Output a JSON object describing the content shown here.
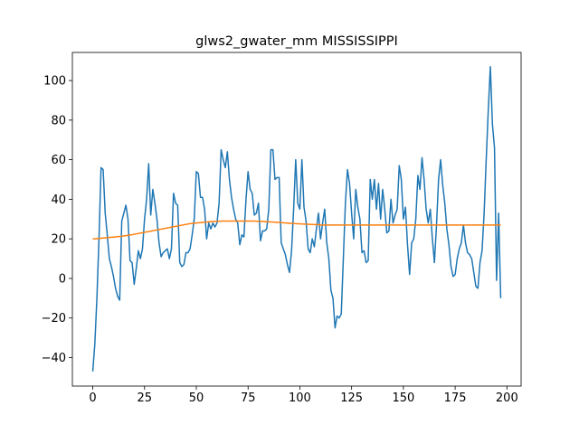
{
  "chart_data": {
    "type": "line",
    "title": "glws2_gwater_mm MISSISSIPPI",
    "xlim": [
      -9.85,
      206.85
    ],
    "xticks": [
      0,
      25,
      50,
      75,
      100,
      125,
      150,
      175,
      200
    ],
    "ylim": [
      -54.4,
      114.2
    ],
    "yticks": [
      {
        "value": -40,
        "label": "−40"
      },
      {
        "value": -20,
        "label": "−20"
      },
      0,
      20,
      40,
      60,
      80,
      100
    ],
    "series": [
      {
        "color": "#1f77b4",
        "values": [
          -47,
          -33,
          -10,
          20,
          56,
          55,
          33,
          22,
          10,
          6,
          1,
          -5,
          -9,
          -11,
          29,
          33,
          37,
          30,
          9,
          8,
          -3,
          5,
          14,
          10,
          15,
          30,
          40,
          58,
          32,
          45,
          38,
          30,
          18,
          11,
          13,
          14,
          15,
          10,
          15,
          43,
          38,
          37,
          8,
          6,
          7,
          13,
          13,
          15,
          22,
          30,
          54,
          53,
          41,
          41,
          35,
          20,
          28,
          25,
          28,
          26,
          28,
          38,
          65,
          60,
          56,
          64,
          50,
          41,
          35,
          30,
          28,
          17,
          22,
          21,
          40,
          54,
          45,
          43,
          32,
          33,
          38,
          19,
          24,
          24,
          25,
          35,
          65,
          65,
          50,
          51,
          51,
          18,
          15,
          12,
          7,
          3,
          14,
          35,
          60,
          38,
          35,
          60,
          36,
          29,
          15,
          13,
          20,
          16,
          25,
          33,
          20,
          28,
          35,
          18,
          10,
          -6,
          -10,
          -25,
          -19,
          -20,
          -18,
          10,
          38,
          55,
          48,
          33,
          20,
          45,
          36,
          30,
          13,
          14,
          8,
          9,
          50,
          40,
          50,
          35,
          48,
          30,
          45,
          35,
          23,
          24,
          40,
          28,
          32,
          35,
          57,
          50,
          30,
          36,
          17,
          2,
          18,
          20,
          30,
          52,
          45,
          61,
          50,
          35,
          28,
          35,
          20,
          8,
          27,
          50,
          60,
          47,
          38,
          25,
          17,
          6,
          1,
          2,
          10,
          15,
          18,
          27,
          18,
          13,
          12,
          10,
          3,
          -4,
          -5,
          8,
          14,
          33,
          60,
          85,
          107,
          78,
          66,
          -1,
          33,
          -10
        ]
      },
      {
        "color": "#ff7f0e",
        "values": [
          20,
          20,
          20.1,
          20.2,
          20.3,
          20.4,
          20.5,
          20.6,
          20.7,
          20.8,
          20.9,
          21,
          21.1,
          21.2,
          21.3,
          21.5,
          21.6,
          21.8,
          22,
          22.1,
          22.3,
          22.5,
          22.7,
          22.9,
          23.1,
          23.3,
          23.5,
          23.7,
          23.9,
          24.1,
          24.3,
          24.5,
          24.7,
          24.9,
          25.1,
          25.3,
          25.5,
          25.7,
          25.9,
          26.1,
          26.3,
          26.5,
          26.7,
          26.9,
          27.1,
          27.3,
          27.5,
          27.7,
          27.8,
          27.9,
          28,
          28.1,
          28.2,
          28.3,
          28.4,
          28.5,
          28.6,
          28.7,
          28.8,
          28.8,
          28.9,
          28.9,
          29,
          29,
          29,
          29,
          29,
          29,
          29,
          29,
          29,
          29,
          29,
          29,
          29,
          29,
          29,
          29,
          29,
          28.9,
          28.9,
          28.8,
          28.8,
          28.7,
          28.7,
          28.6,
          28.5,
          28.5,
          28.4,
          28.3,
          28.3,
          28.2,
          28.1,
          28,
          28,
          27.9,
          27.8,
          27.8,
          27.7,
          27.6,
          27.6,
          27.5,
          27.5,
          27.4,
          27.4,
          27.3,
          27.3,
          27.2,
          27.2,
          27.2,
          27,
          27,
          27,
          27,
          27,
          27,
          27,
          27,
          27,
          27,
          27,
          27,
          27,
          27,
          27,
          27,
          27,
          27,
          27,
          27,
          27,
          27,
          27,
          27,
          27,
          27,
          27,
          27,
          27,
          27,
          27,
          27,
          27,
          27,
          27,
          27,
          27,
          27,
          27,
          27,
          27,
          27,
          27,
          27,
          27,
          27,
          27,
          27,
          27,
          27,
          27,
          27,
          27,
          27,
          27,
          27,
          27,
          27,
          27,
          27,
          27,
          27,
          27,
          27,
          27,
          27,
          27,
          27,
          27,
          27,
          27,
          27,
          27,
          27,
          27,
          27,
          27,
          27,
          27,
          27,
          27,
          27,
          27,
          27,
          27,
          27,
          27,
          27
        ]
      }
    ]
  }
}
